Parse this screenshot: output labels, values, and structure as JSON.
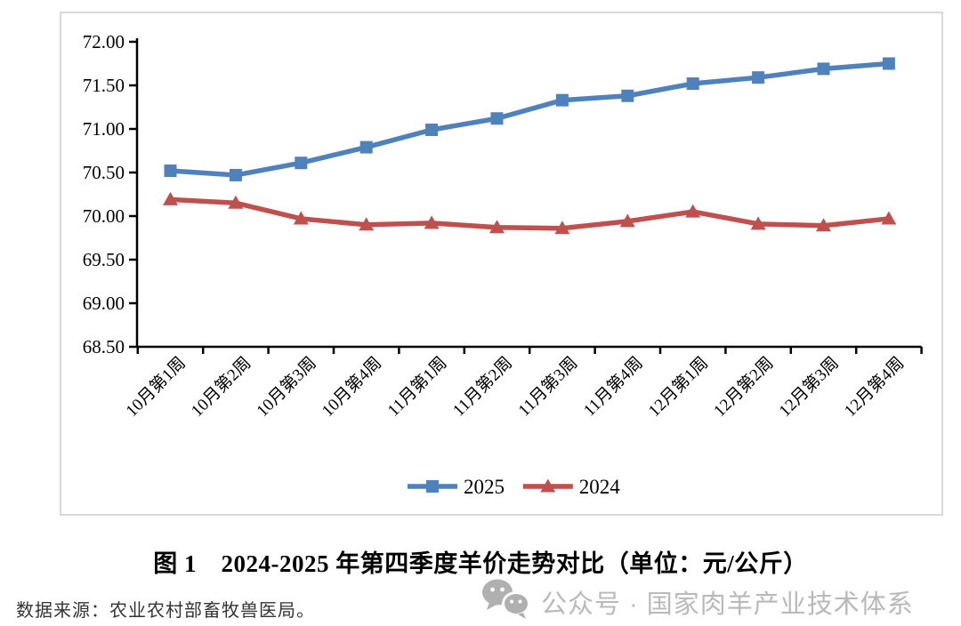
{
  "chart_data": {
    "type": "line",
    "title": "图 1　2024-2025 年第四季度羊价走势对比（单位：元/公斤）",
    "xlabel": "",
    "ylabel": "",
    "categories": [
      "10月第1周",
      "10月第2周",
      "10月第3周",
      "10月第4周",
      "11月第1周",
      "11月第2周",
      "11月第3周",
      "11月第4周",
      "12月第1周",
      "12月第2周",
      "12月第3周",
      "12月第4周"
    ],
    "series": [
      {
        "name": "2025",
        "color": "#4F81BD",
        "marker": "square",
        "values": [
          70.52,
          70.47,
          70.61,
          70.79,
          70.99,
          71.12,
          71.33,
          71.38,
          71.52,
          71.59,
          71.69,
          71.75
        ]
      },
      {
        "name": "2024",
        "color": "#C0504D",
        "marker": "triangle",
        "values": [
          70.19,
          70.15,
          69.97,
          69.9,
          69.92,
          69.87,
          69.86,
          69.94,
          70.05,
          69.91,
          69.89,
          69.97
        ]
      }
    ],
    "ylim": [
      68.5,
      72.0
    ],
    "ytick_step": 0.5,
    "ytick_label_format": "2-decimals",
    "grid": false,
    "legend_position": "bottom",
    "x_label_rotation": 45,
    "axis_color": "#000000",
    "panel_border_color": "#d9d9d9"
  },
  "caption": {
    "text": "图 1　2024-2025 年第四季度羊价走势对比（单位：元/公斤）"
  },
  "footer": {
    "source": "数据来源：农业农村部畜牧兽医局。",
    "watermark_icon": "wechat-icon",
    "watermark_text": "公众号 · 国家肉羊产业技术体系",
    "watermark_color": "#b9b9b9"
  }
}
